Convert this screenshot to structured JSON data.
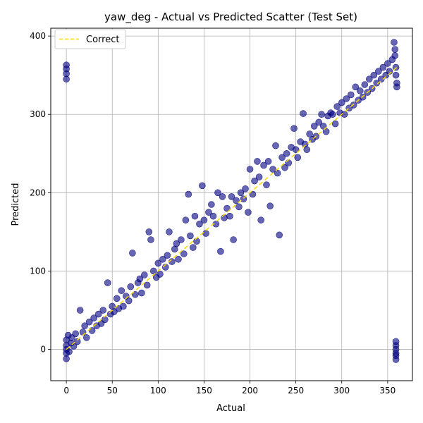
{
  "chart_data": {
    "type": "scatter",
    "title": "yaw_deg - Actual vs Predicted Scatter (Test Set)",
    "xlabel": "Actual",
    "ylabel": "Predicted",
    "xlim": [
      -17,
      377
    ],
    "ylim": [
      -40,
      410
    ],
    "xticks": [
      0,
      50,
      100,
      150,
      200,
      250,
      300,
      350
    ],
    "yticks": [
      0,
      100,
      200,
      300,
      400
    ],
    "grid": true,
    "legend": {
      "placement": "top-left",
      "entries": [
        "Correct"
      ]
    },
    "series": [
      {
        "kind": "scatter",
        "color": "#000080",
        "points": [
          [
            0,
            -12
          ],
          [
            0,
            -5
          ],
          [
            0,
            0
          ],
          [
            0,
            5
          ],
          [
            0,
            12
          ],
          [
            2,
            18
          ],
          [
            3,
            -3
          ],
          [
            5,
            8
          ],
          [
            6,
            15
          ],
          [
            8,
            4
          ],
          [
            10,
            20
          ],
          [
            12,
            10
          ],
          [
            15,
            50
          ],
          [
            18,
            22
          ],
          [
            20,
            30
          ],
          [
            22,
            15
          ],
          [
            25,
            35
          ],
          [
            28,
            24
          ],
          [
            30,
            40
          ],
          [
            33,
            30
          ],
          [
            35,
            45
          ],
          [
            38,
            33
          ],
          [
            40,
            50
          ],
          [
            42,
            38
          ],
          [
            45,
            85
          ],
          [
            48,
            45
          ],
          [
            50,
            55
          ],
          [
            52,
            48
          ],
          [
            55,
            65
          ],
          [
            57,
            52
          ],
          [
            60,
            75
          ],
          [
            62,
            55
          ],
          [
            65,
            68
          ],
          [
            68,
            62
          ],
          [
            70,
            80
          ],
          [
            72,
            123
          ],
          [
            75,
            70
          ],
          [
            78,
            85
          ],
          [
            80,
            90
          ],
          [
            82,
            72
          ],
          [
            85,
            95
          ],
          [
            88,
            82
          ],
          [
            90,
            150
          ],
          [
            92,
            140
          ],
          [
            95,
            100
          ],
          [
            98,
            92
          ],
          [
            100,
            110
          ],
          [
            102,
            96
          ],
          [
            105,
            115
          ],
          [
            108,
            105
          ],
          [
            110,
            120
          ],
          [
            112,
            150
          ],
          [
            115,
            112
          ],
          [
            118,
            128
          ],
          [
            120,
            135
          ],
          [
            122,
            115
          ],
          [
            125,
            140
          ],
          [
            128,
            122
          ],
          [
            130,
            165
          ],
          [
            133,
            198
          ],
          [
            135,
            145
          ],
          [
            138,
            130
          ],
          [
            140,
            170
          ],
          [
            142,
            138
          ],
          [
            145,
            160
          ],
          [
            148,
            209
          ],
          [
            150,
            165
          ],
          [
            152,
            148
          ],
          [
            155,
            175
          ],
          [
            158,
            185
          ],
          [
            160,
            170
          ],
          [
            163,
            160
          ],
          [
            165,
            200
          ],
          [
            168,
            125
          ],
          [
            170,
            195
          ],
          [
            172,
            168
          ],
          [
            175,
            180
          ],
          [
            178,
            170
          ],
          [
            180,
            195
          ],
          [
            182,
            140
          ],
          [
            185,
            190
          ],
          [
            188,
            182
          ],
          [
            190,
            200
          ],
          [
            193,
            192
          ],
          [
            195,
            205
          ],
          [
            198,
            175
          ],
          [
            200,
            230
          ],
          [
            203,
            198
          ],
          [
            205,
            215
          ],
          [
            208,
            240
          ],
          [
            210,
            220
          ],
          [
            212,
            165
          ],
          [
            215,
            235
          ],
          [
            218,
            210
          ],
          [
            220,
            240
          ],
          [
            222,
            183
          ],
          [
            225,
            230
          ],
          [
            228,
            260
          ],
          [
            230,
            225
          ],
          [
            232,
            146
          ],
          [
            235,
            245
          ],
          [
            238,
            232
          ],
          [
            240,
            250
          ],
          [
            242,
            238
          ],
          [
            245,
            258
          ],
          [
            248,
            282
          ],
          [
            250,
            255
          ],
          [
            252,
            245
          ],
          [
            255,
            265
          ],
          [
            258,
            301
          ],
          [
            260,
            262
          ],
          [
            262,
            255
          ],
          [
            265,
            275
          ],
          [
            268,
            268
          ],
          [
            270,
            285
          ],
          [
            272,
            272
          ],
          [
            275,
            290
          ],
          [
            278,
            300
          ],
          [
            280,
            285
          ],
          [
            283,
            278
          ],
          [
            285,
            298
          ],
          [
            288,
            302
          ],
          [
            290,
            300
          ],
          [
            293,
            288
          ],
          [
            295,
            310
          ],
          [
            298,
            302
          ],
          [
            300,
            315
          ],
          [
            303,
            300
          ],
          [
            305,
            320
          ],
          [
            308,
            308
          ],
          [
            310,
            325
          ],
          [
            313,
            312
          ],
          [
            315,
            335
          ],
          [
            318,
            318
          ],
          [
            320,
            330
          ],
          [
            323,
            322
          ],
          [
            325,
            338
          ],
          [
            328,
            328
          ],
          [
            330,
            345
          ],
          [
            333,
            333
          ],
          [
            335,
            350
          ],
          [
            338,
            340
          ],
          [
            340,
            355
          ],
          [
            343,
            345
          ],
          [
            345,
            360
          ],
          [
            348,
            350
          ],
          [
            350,
            365
          ],
          [
            352,
            355
          ],
          [
            355,
            370
          ],
          [
            357,
            392
          ],
          [
            358,
            383
          ],
          [
            358,
            375
          ],
          [
            359,
            360
          ],
          [
            359,
            350
          ],
          [
            360,
            340
          ],
          [
            360,
            335
          ],
          [
            0,
            363
          ],
          [
            0,
            358
          ],
          [
            0,
            352
          ],
          [
            0,
            345
          ],
          [
            359,
            10
          ],
          [
            359,
            5
          ],
          [
            359,
            0
          ],
          [
            359,
            -5
          ],
          [
            359,
            -8
          ],
          [
            359,
            -13
          ]
        ]
      },
      {
        "kind": "line",
        "name": "Correct",
        "color": "#FFD700",
        "dashed": true,
        "x": [
          0,
          360
        ],
        "y": [
          0,
          360
        ]
      }
    ]
  }
}
